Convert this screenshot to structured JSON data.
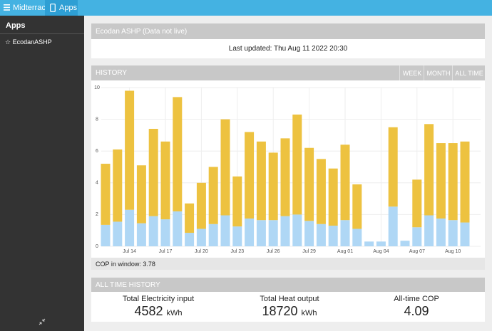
{
  "nav": {
    "brand": "Midterrace",
    "apps": "Apps"
  },
  "sidebar": {
    "title": "Apps",
    "items": [
      "☆ EcodanASHP"
    ]
  },
  "status_panel": {
    "title": "Ecodan ASHP (Data not live)",
    "updated": "Last updated: Thu Aug 11 2022 20:30"
  },
  "history_panel": {
    "title": "HISTORY",
    "buttons": [
      "WEEK",
      "MONTH",
      "ALL TIME"
    ],
    "cop_label": "COP in window:",
    "cop_value": "3.78"
  },
  "chart_data": {
    "type": "bar",
    "stacked": true,
    "categories": [
      null,
      null,
      "Jul 14",
      null,
      null,
      "Jul 17",
      null,
      null,
      "Jul 20",
      null,
      null,
      "Jul 23",
      null,
      null,
      "Jul 26",
      null,
      null,
      "Jul 29",
      null,
      null,
      "Aug 01",
      null,
      null,
      "Aug 04",
      null,
      null,
      "Aug 07",
      null,
      null,
      "Aug 10",
      null
    ],
    "series": [
      {
        "color": "#afd7f5",
        "values": [
          1.35,
          1.55,
          2.3,
          1.45,
          1.9,
          1.7,
          2.2,
          0.85,
          1.1,
          1.4,
          1.95,
          1.25,
          1.75,
          1.65,
          1.65,
          1.9,
          2.0,
          1.6,
          1.4,
          1.3,
          1.65,
          1.1,
          0.3,
          0.3,
          2.5,
          0.35,
          1.2,
          1.95,
          1.75,
          1.65,
          1.5
        ]
      },
      {
        "color": "#edc240",
        "values": [
          3.85,
          4.55,
          7.5,
          3.65,
          5.5,
          4.9,
          7.2,
          1.85,
          2.9,
          3.6,
          6.05,
          3.15,
          5.45,
          4.95,
          4.25,
          4.9,
          6.3,
          4.6,
          4.1,
          3.6,
          4.75,
          2.8,
          0,
          0,
          5.0,
          0,
          3.0,
          5.75,
          4.75,
          4.85,
          5.1
        ]
      }
    ],
    "ylim": [
      0,
      10
    ],
    "yticks": [
      0,
      2,
      4,
      6,
      8,
      10
    ],
    "grid": true
  },
  "all_time": {
    "title": "ALL TIME HISTORY",
    "stats": [
      {
        "label": "Total Electricity input",
        "value": "4582",
        "unit": "kWh"
      },
      {
        "label": "Total Heat output",
        "value": "18720",
        "unit": "kWh"
      },
      {
        "label": "All-time COP",
        "value": "4.09",
        "unit": null
      }
    ]
  }
}
